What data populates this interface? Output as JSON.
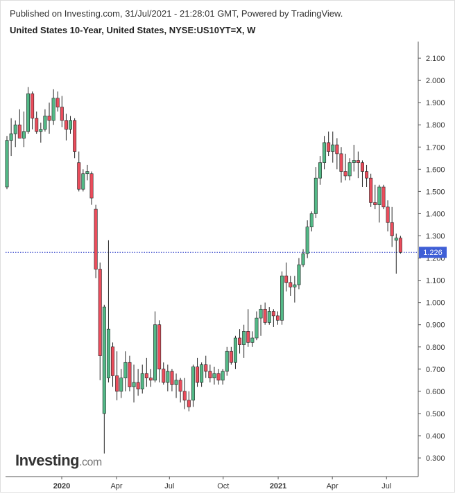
{
  "chart_data": {
    "type": "candlestick",
    "published": "Published on Investing.com, 31/Jul/2021 - 21:28:01 GMT, Powered by TradingView.",
    "title": "United States 10-Year, United States, NYSE:US10YT=X, W",
    "logo": {
      "brand": "Investing",
      "suffix": ".com"
    },
    "up_color": "#53b987",
    "down_color": "#eb4d5c",
    "open": [
      1.52,
      1.73,
      1.76,
      1.8,
      1.74,
      1.77,
      1.94,
      1.83,
      1.77,
      1.78,
      1.84,
      1.82,
      1.92,
      1.88,
      1.82,
      1.78,
      1.82,
      1.63,
      1.51,
      1.58,
      1.58,
      1.42,
      1.15,
      0.5,
      0.66,
      0.8,
      0.67,
      0.6,
      0.66,
      0.73,
      0.62,
      0.64,
      0.61,
      0.68,
      0.66,
      0.65,
      0.9,
      0.7,
      0.64,
      0.69,
      0.63,
      0.65,
      0.6,
      0.56,
      0.56,
      0.71,
      0.64,
      0.72,
      0.69,
      0.66,
      0.68,
      0.65,
      0.69,
      0.78,
      0.73,
      0.84,
      0.81,
      0.87,
      0.82,
      0.84,
      0.93,
      0.97,
      0.91,
      0.96,
      0.94,
      0.92,
      1.12,
      1.09,
      1.07,
      1.08,
      1.17,
      1.22,
      1.34,
      1.4,
      1.56,
      1.63,
      1.72,
      1.68,
      1.71,
      1.67,
      1.59,
      1.57,
      1.63,
      1.64,
      1.63,
      1.59,
      1.56,
      1.45,
      1.44,
      1.52,
      1.43,
      1.36,
      1.28,
      1.29
    ],
    "high": [
      1.75,
      1.83,
      1.82,
      1.87,
      1.86,
      1.97,
      1.95,
      1.86,
      1.81,
      1.87,
      1.9,
      1.96,
      1.95,
      1.93,
      1.85,
      1.84,
      1.83,
      1.68,
      1.6,
      1.62,
      1.59,
      1.44,
      1.18,
      0.99,
      1.28,
      0.82,
      0.78,
      0.7,
      0.78,
      0.76,
      0.72,
      0.7,
      0.72,
      0.75,
      0.7,
      0.96,
      0.92,
      0.73,
      0.72,
      0.7,
      0.68,
      0.66,
      0.66,
      0.6,
      0.72,
      0.75,
      0.73,
      0.76,
      0.72,
      0.71,
      0.7,
      0.7,
      0.8,
      0.8,
      0.85,
      0.88,
      0.9,
      0.97,
      0.87,
      0.96,
      0.99,
      1.0,
      0.98,
      0.97,
      0.96,
      1.14,
      1.18,
      1.12,
      1.12,
      1.2,
      1.24,
      1.37,
      1.41,
      1.61,
      1.66,
      1.75,
      1.77,
      1.77,
      1.74,
      1.7,
      1.67,
      1.65,
      1.71,
      1.68,
      1.64,
      1.62,
      1.58,
      1.53,
      1.53,
      1.53,
      1.46,
      1.43,
      1.31,
      1.3
    ],
    "low": [
      1.51,
      1.66,
      1.7,
      1.75,
      1.7,
      1.76,
      1.78,
      1.76,
      1.72,
      1.77,
      1.76,
      1.8,
      1.86,
      1.79,
      1.73,
      1.76,
      1.65,
      1.5,
      1.5,
      1.55,
      1.44,
      1.11,
      0.65,
      0.32,
      0.64,
      0.62,
      0.56,
      0.57,
      0.6,
      0.6,
      0.55,
      0.58,
      0.59,
      0.62,
      0.62,
      0.64,
      0.64,
      0.63,
      0.6,
      0.6,
      0.57,
      0.55,
      0.52,
      0.51,
      0.53,
      0.62,
      0.62,
      0.66,
      0.64,
      0.63,
      0.63,
      0.63,
      0.67,
      0.72,
      0.7,
      0.77,
      0.75,
      0.8,
      0.8,
      0.83,
      0.85,
      0.9,
      0.9,
      0.89,
      0.9,
      0.9,
      1.05,
      1.03,
      1.0,
      1.06,
      1.16,
      1.2,
      1.32,
      1.38,
      1.53,
      1.6,
      1.66,
      1.63,
      1.6,
      1.54,
      1.55,
      1.55,
      1.59,
      1.56,
      1.52,
      1.52,
      1.43,
      1.42,
      1.36,
      1.42,
      1.32,
      1.25,
      1.13,
      1.22
    ],
    "close": [
      1.73,
      1.76,
      1.8,
      1.74,
      1.77,
      1.94,
      1.83,
      1.77,
      1.78,
      1.84,
      1.82,
      1.92,
      1.88,
      1.82,
      1.78,
      1.82,
      1.68,
      1.51,
      1.58,
      1.59,
      1.47,
      1.15,
      0.76,
      0.98,
      0.88,
      0.67,
      0.6,
      0.66,
      0.73,
      0.62,
      0.64,
      0.61,
      0.68,
      0.66,
      0.65,
      0.9,
      0.7,
      0.64,
      0.69,
      0.63,
      0.65,
      0.6,
      0.56,
      0.53,
      0.71,
      0.64,
      0.72,
      0.69,
      0.66,
      0.68,
      0.65,
      0.69,
      0.78,
      0.73,
      0.84,
      0.81,
      0.87,
      0.82,
      0.84,
      0.93,
      0.97,
      0.91,
      0.96,
      0.94,
      0.92,
      1.12,
      1.09,
      1.07,
      1.08,
      1.17,
      1.22,
      1.34,
      1.4,
      1.56,
      1.63,
      1.72,
      1.68,
      1.71,
      1.67,
      1.59,
      1.57,
      1.63,
      1.64,
      1.63,
      1.59,
      1.56,
      1.45,
      1.44,
      1.52,
      1.43,
      1.36,
      1.3,
      1.29,
      1.226
    ],
    "last_price": {
      "value": 1.226,
      "label": "1.226"
    },
    "ylim": [
      0.216,
      2.175
    ],
    "yticks": [
      {
        "value": 0.3,
        "label": "0.300"
      },
      {
        "value": 0.4,
        "label": "0.400"
      },
      {
        "value": 0.5,
        "label": "0.500"
      },
      {
        "value": 0.6,
        "label": "0.600"
      },
      {
        "value": 0.7,
        "label": "0.700"
      },
      {
        "value": 0.8,
        "label": "0.800"
      },
      {
        "value": 0.9,
        "label": "0.900"
      },
      {
        "value": 1.0,
        "label": "1.000"
      },
      {
        "value": 1.1,
        "label": "1.100"
      },
      {
        "value": 1.2,
        "label": "1.200"
      },
      {
        "value": 1.3,
        "label": "1.300"
      },
      {
        "value": 1.4,
        "label": "1.400"
      },
      {
        "value": 1.5,
        "label": "1.500"
      },
      {
        "value": 1.6,
        "label": "1.600"
      },
      {
        "value": 1.7,
        "label": "1.700"
      },
      {
        "value": 1.8,
        "label": "1.800"
      },
      {
        "value": 1.9,
        "label": "1.900"
      },
      {
        "value": 2.0,
        "label": "2.000"
      },
      {
        "value": 2.1,
        "label": "2.100"
      }
    ],
    "xlim": [
      -0.33,
      97.2
    ],
    "xticks": [
      {
        "value": 12.95,
        "label": "2020"
      },
      {
        "value": 25.9,
        "label": "Apr"
      },
      {
        "value": 38.4,
        "label": "Jul"
      },
      {
        "value": 51.1,
        "label": "Oct"
      },
      {
        "value": 64.1,
        "label": "2021"
      },
      {
        "value": 76.9,
        "label": "Apr"
      },
      {
        "value": 89.7,
        "label": "Jul"
      }
    ]
  }
}
